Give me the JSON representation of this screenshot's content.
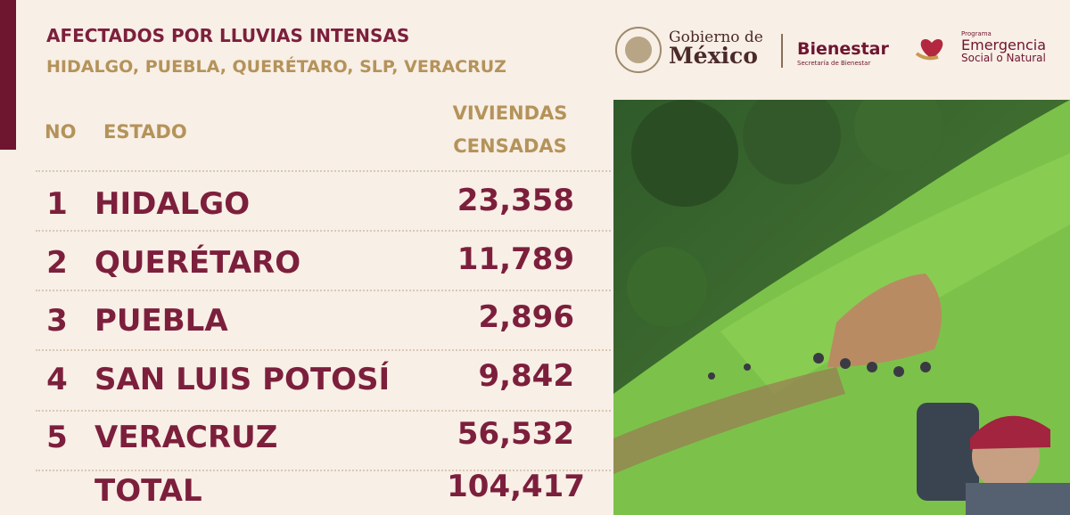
{
  "header": {
    "title": "AFECTADOS POR LLUVIAS INTENSAS",
    "subtitle": "HIDALGO, PUEBLA, QUERÉTARO, SLP, VERACRUZ"
  },
  "logos": {
    "gobierno_line1": "Gobierno de",
    "gobierno_line2": "México",
    "bienestar": "Bienestar",
    "bienestar_sub": "Secretaría de Bienestar",
    "programa": "Programa",
    "emergencia": "Emergencia",
    "emergencia_sub": "Social o Natural"
  },
  "table": {
    "columns": [
      "NO",
      "ESTADO",
      "VIVIENDAS",
      "CENSADAS"
    ],
    "rows": [
      [
        "1",
        "HIDALGO",
        "23,358"
      ],
      [
        "2",
        "QUERÉTARO",
        "11,789"
      ],
      [
        "3",
        "PUEBLA",
        "2,896"
      ],
      [
        "4",
        "SAN LUIS POTOSÍ",
        "9,842"
      ],
      [
        "5",
        "VERACRUZ",
        "56,532"
      ]
    ],
    "total": {
      "label": "TOTAL",
      "value": "104,417"
    }
  }
}
